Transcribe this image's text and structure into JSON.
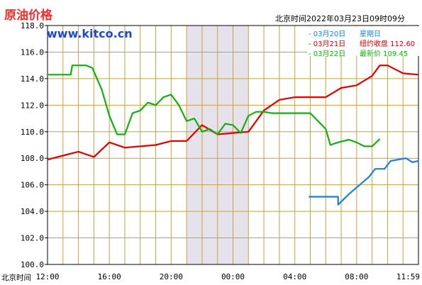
{
  "header": {
    "title": "原油价格",
    "site": "www.kitco.cn",
    "timestamp": "北京时间2022年03月23日09时09分"
  },
  "legend": [
    {
      "date": "03月20日",
      "label": "星期日",
      "value": "",
      "color": "#1a7fe0"
    },
    {
      "date": "03月21日",
      "label": "纽约收盘",
      "value": "112.60",
      "color": "#e00000"
    },
    {
      "date": "03月22日",
      "label": "最新价",
      "value": "109.45",
      "color": "#10b010"
    }
  ],
  "chart_data": {
    "type": "line",
    "xlabel": "北京时间",
    "x_ticks": [
      "12:00",
      "16:00",
      "20:00",
      "00:00",
      "04:00",
      "08:00",
      "11:59"
    ],
    "x_range": [
      0,
      24
    ],
    "y_ticks": [
      "100.0",
      "102.0",
      "104.0",
      "106.0",
      "108.0",
      "110.0",
      "112.0",
      "114.0",
      "116.0",
      "118.0"
    ],
    "ylim": [
      100,
      118
    ],
    "shaded_region": [
      9,
      13
    ],
    "colors": {
      "grid": "#c8a040",
      "shade": "#e6e2ec",
      "border": "#000000"
    },
    "series": [
      {
        "name": "03月20日",
        "color": "#1a7fe0",
        "x": [
          16.9,
          18.8,
          18.8,
          19.5,
          20.2,
          20.8,
          21.2,
          21.8,
          22.2,
          22.7,
          23.2,
          23.6,
          24.0
        ],
        "y": [
          105.1,
          105.1,
          104.5,
          105.3,
          106.0,
          106.6,
          107.2,
          107.2,
          107.8,
          107.9,
          108.0,
          107.7,
          107.8
        ]
      },
      {
        "name": "03月21日",
        "color": "#e00000",
        "x": [
          0.0,
          1.0,
          2.0,
          3.0,
          4.0,
          5.0,
          6.0,
          7.0,
          8.0,
          9.0,
          10.0,
          11.0,
          12.0,
          13.0,
          14.0,
          15.0,
          16.0,
          17.0,
          18.0,
          19.0,
          20.0,
          21.0,
          21.5,
          22.0,
          22.5,
          23.0,
          24.0
        ],
        "y": [
          107.9,
          108.2,
          108.5,
          108.1,
          109.2,
          108.8,
          108.9,
          109.0,
          109.3,
          109.3,
          110.5,
          109.8,
          109.9,
          110.0,
          111.6,
          112.4,
          112.6,
          112.6,
          112.6,
          113.3,
          113.5,
          114.2,
          115.0,
          115.0,
          114.7,
          114.4,
          114.3
        ]
      },
      {
        "name": "03月22日",
        "color": "#10b010",
        "x": [
          0.0,
          1.5,
          1.6,
          2.5,
          2.9,
          3.5,
          4.0,
          4.5,
          5.0,
          5.5,
          6.0,
          6.5,
          7.0,
          7.5,
          8.0,
          8.5,
          9.0,
          9.5,
          10.0,
          10.5,
          11.0,
          11.5,
          12.0,
          12.5,
          13.0,
          13.5,
          14.0,
          14.5,
          15.0,
          17.0,
          18.0,
          18.3,
          18.8,
          19.5,
          20.0,
          20.5,
          21.0,
          21.5
        ],
        "y": [
          114.3,
          114.3,
          115.0,
          115.0,
          114.8,
          113.2,
          111.2,
          109.8,
          109.8,
          111.4,
          111.6,
          112.2,
          112.0,
          112.6,
          112.8,
          112.0,
          110.8,
          111.0,
          110.0,
          110.2,
          109.8,
          110.6,
          110.5,
          109.9,
          111.2,
          111.5,
          111.5,
          111.4,
          111.4,
          111.4,
          110.2,
          109.0,
          109.2,
          109.4,
          109.2,
          108.9,
          108.9,
          109.45
        ]
      }
    ]
  }
}
